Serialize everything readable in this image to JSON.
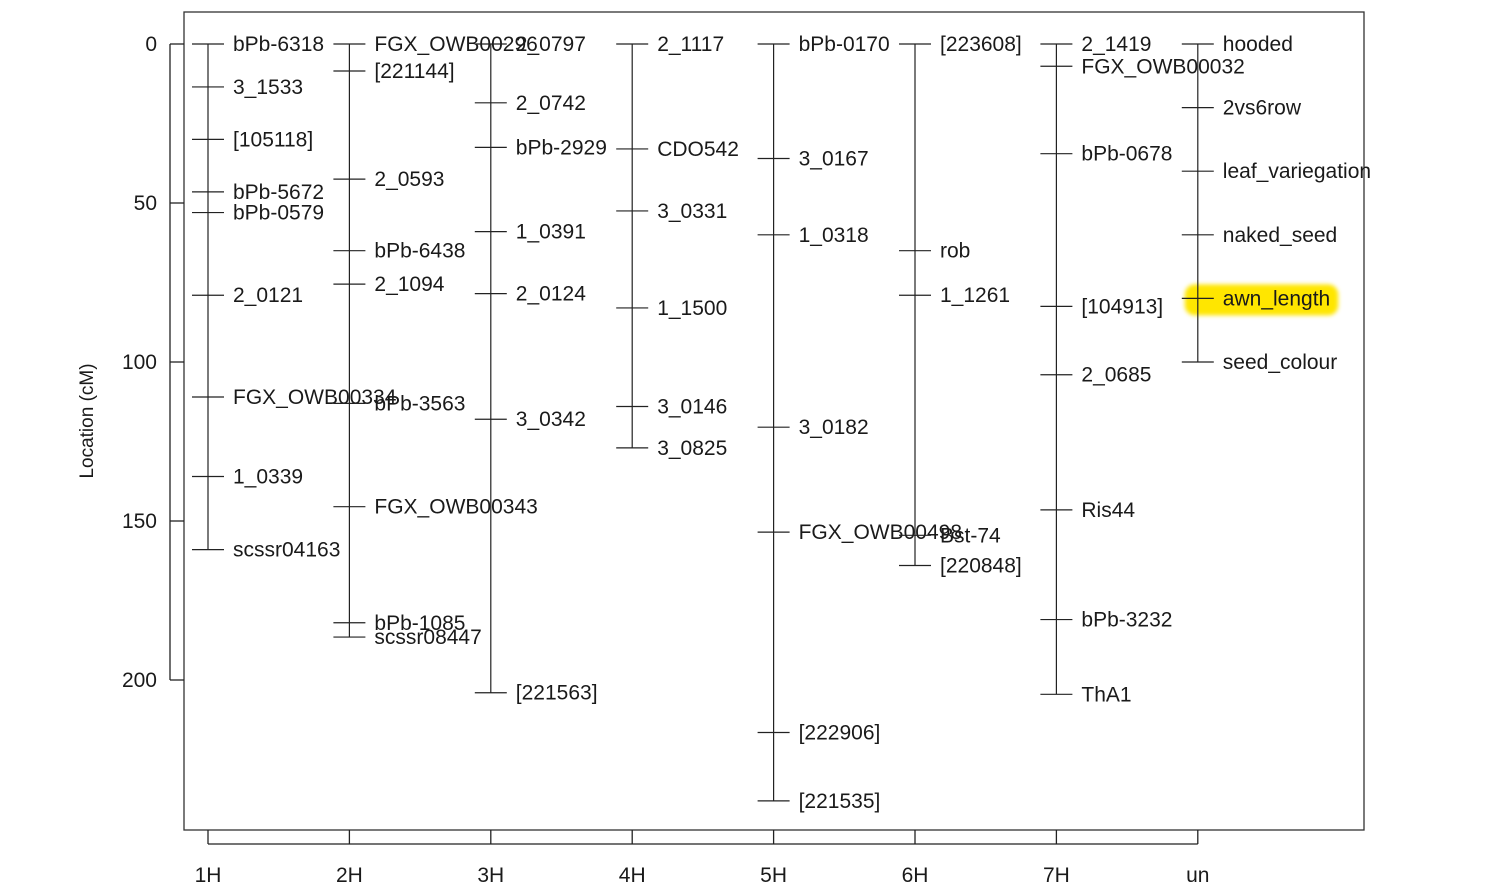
{
  "chart_data": {
    "type": "genetic-linkage-map",
    "ylabel": "Location (cM)",
    "yticks": [
      0,
      50,
      100,
      150,
      200
    ],
    "ylim": [
      0,
      248
    ],
    "y_reversed": true,
    "highlight_color": "#ffe600",
    "linkage_groups": [
      {
        "name": "1H",
        "markers": [
          {
            "label": "bPb-6318",
            "pos": 0
          },
          {
            "label": "3_1533",
            "pos": 13.5
          },
          {
            "label": "[105118]",
            "pos": 30
          },
          {
            "label": "bPb-5672",
            "pos": 46.5
          },
          {
            "label": "bPb-0579",
            "pos": 53
          },
          {
            "label": "2_0121",
            "pos": 79
          },
          {
            "label": "FGX_OWB00334",
            "pos": 111
          },
          {
            "label": "1_0339",
            "pos": 136
          },
          {
            "label": "scssr04163",
            "pos": 159
          }
        ]
      },
      {
        "name": "2H",
        "markers": [
          {
            "label": "FGX_OWB00296",
            "pos": 0
          },
          {
            "label": "[221144]",
            "pos": 8.5
          },
          {
            "label": "2_0593",
            "pos": 42.5
          },
          {
            "label": "bPb-6438",
            "pos": 65
          },
          {
            "label": "2_1094",
            "pos": 75.5
          },
          {
            "label": "bPb-3563",
            "pos": 113
          },
          {
            "label": "FGX_OWB00343",
            "pos": 145.5
          },
          {
            "label": "bPb-1085",
            "pos": 182
          },
          {
            "label": "scssr08447",
            "pos": 186.5
          }
        ]
      },
      {
        "name": "3H",
        "markers": [
          {
            "label": "2_0797",
            "pos": 0
          },
          {
            "label": "2_0742",
            "pos": 18.5
          },
          {
            "label": "bPb-2929",
            "pos": 32.5
          },
          {
            "label": "1_0391",
            "pos": 59
          },
          {
            "label": "2_0124",
            "pos": 78.5
          },
          {
            "label": "3_0342",
            "pos": 118
          },
          {
            "label": "[221563]",
            "pos": 204
          }
        ]
      },
      {
        "name": "4H",
        "markers": [
          {
            "label": "2_1117",
            "pos": 0
          },
          {
            "label": "CDO542",
            "pos": 33
          },
          {
            "label": "3_0331",
            "pos": 52.5
          },
          {
            "label": "1_1500",
            "pos": 83
          },
          {
            "label": "3_0146",
            "pos": 114
          },
          {
            "label": "3_0825",
            "pos": 127
          }
        ]
      },
      {
        "name": "5H",
        "markers": [
          {
            "label": "bPb-0170",
            "pos": 0
          },
          {
            "label": "3_0167",
            "pos": 36
          },
          {
            "label": "1_0318",
            "pos": 60
          },
          {
            "label": "3_0182",
            "pos": 120.5
          },
          {
            "label": "FGX_OWB00498",
            "pos": 153.5
          },
          {
            "label": "[222906]",
            "pos": 216.5
          },
          {
            "label": "[221535]",
            "pos": 238
          }
        ]
      },
      {
        "name": "6H",
        "markers": [
          {
            "label": "[223608]",
            "pos": 0
          },
          {
            "label": "rob",
            "pos": 65
          },
          {
            "label": "1_1261",
            "pos": 79
          },
          {
            "label": "Bst-74",
            "pos": 154.5
          },
          {
            "label": "[220848]",
            "pos": 164
          }
        ]
      },
      {
        "name": "7H",
        "markers": [
          {
            "label": "2_1419",
            "pos": 0
          },
          {
            "label": "FGX_OWB00032",
            "pos": 7
          },
          {
            "label": "bPb-0678",
            "pos": 34.5
          },
          {
            "label": "[104913]",
            "pos": 82.5
          },
          {
            "label": "2_0685",
            "pos": 104
          },
          {
            "label": "Ris44",
            "pos": 146.5
          },
          {
            "label": "bPb-3232",
            "pos": 181
          },
          {
            "label": "ThA1",
            "pos": 204.5
          }
        ]
      },
      {
        "name": "un",
        "markers": [
          {
            "label": "hooded",
            "pos": 0
          },
          {
            "label": "2vs6row",
            "pos": 20
          },
          {
            "label": "leaf_variegation",
            "pos": 40
          },
          {
            "label": "naked_seed",
            "pos": 60
          },
          {
            "label": "awn_length",
            "pos": 80,
            "highlighted": true
          },
          {
            "label": "seed_colour",
            "pos": 100
          }
        ]
      }
    ]
  }
}
